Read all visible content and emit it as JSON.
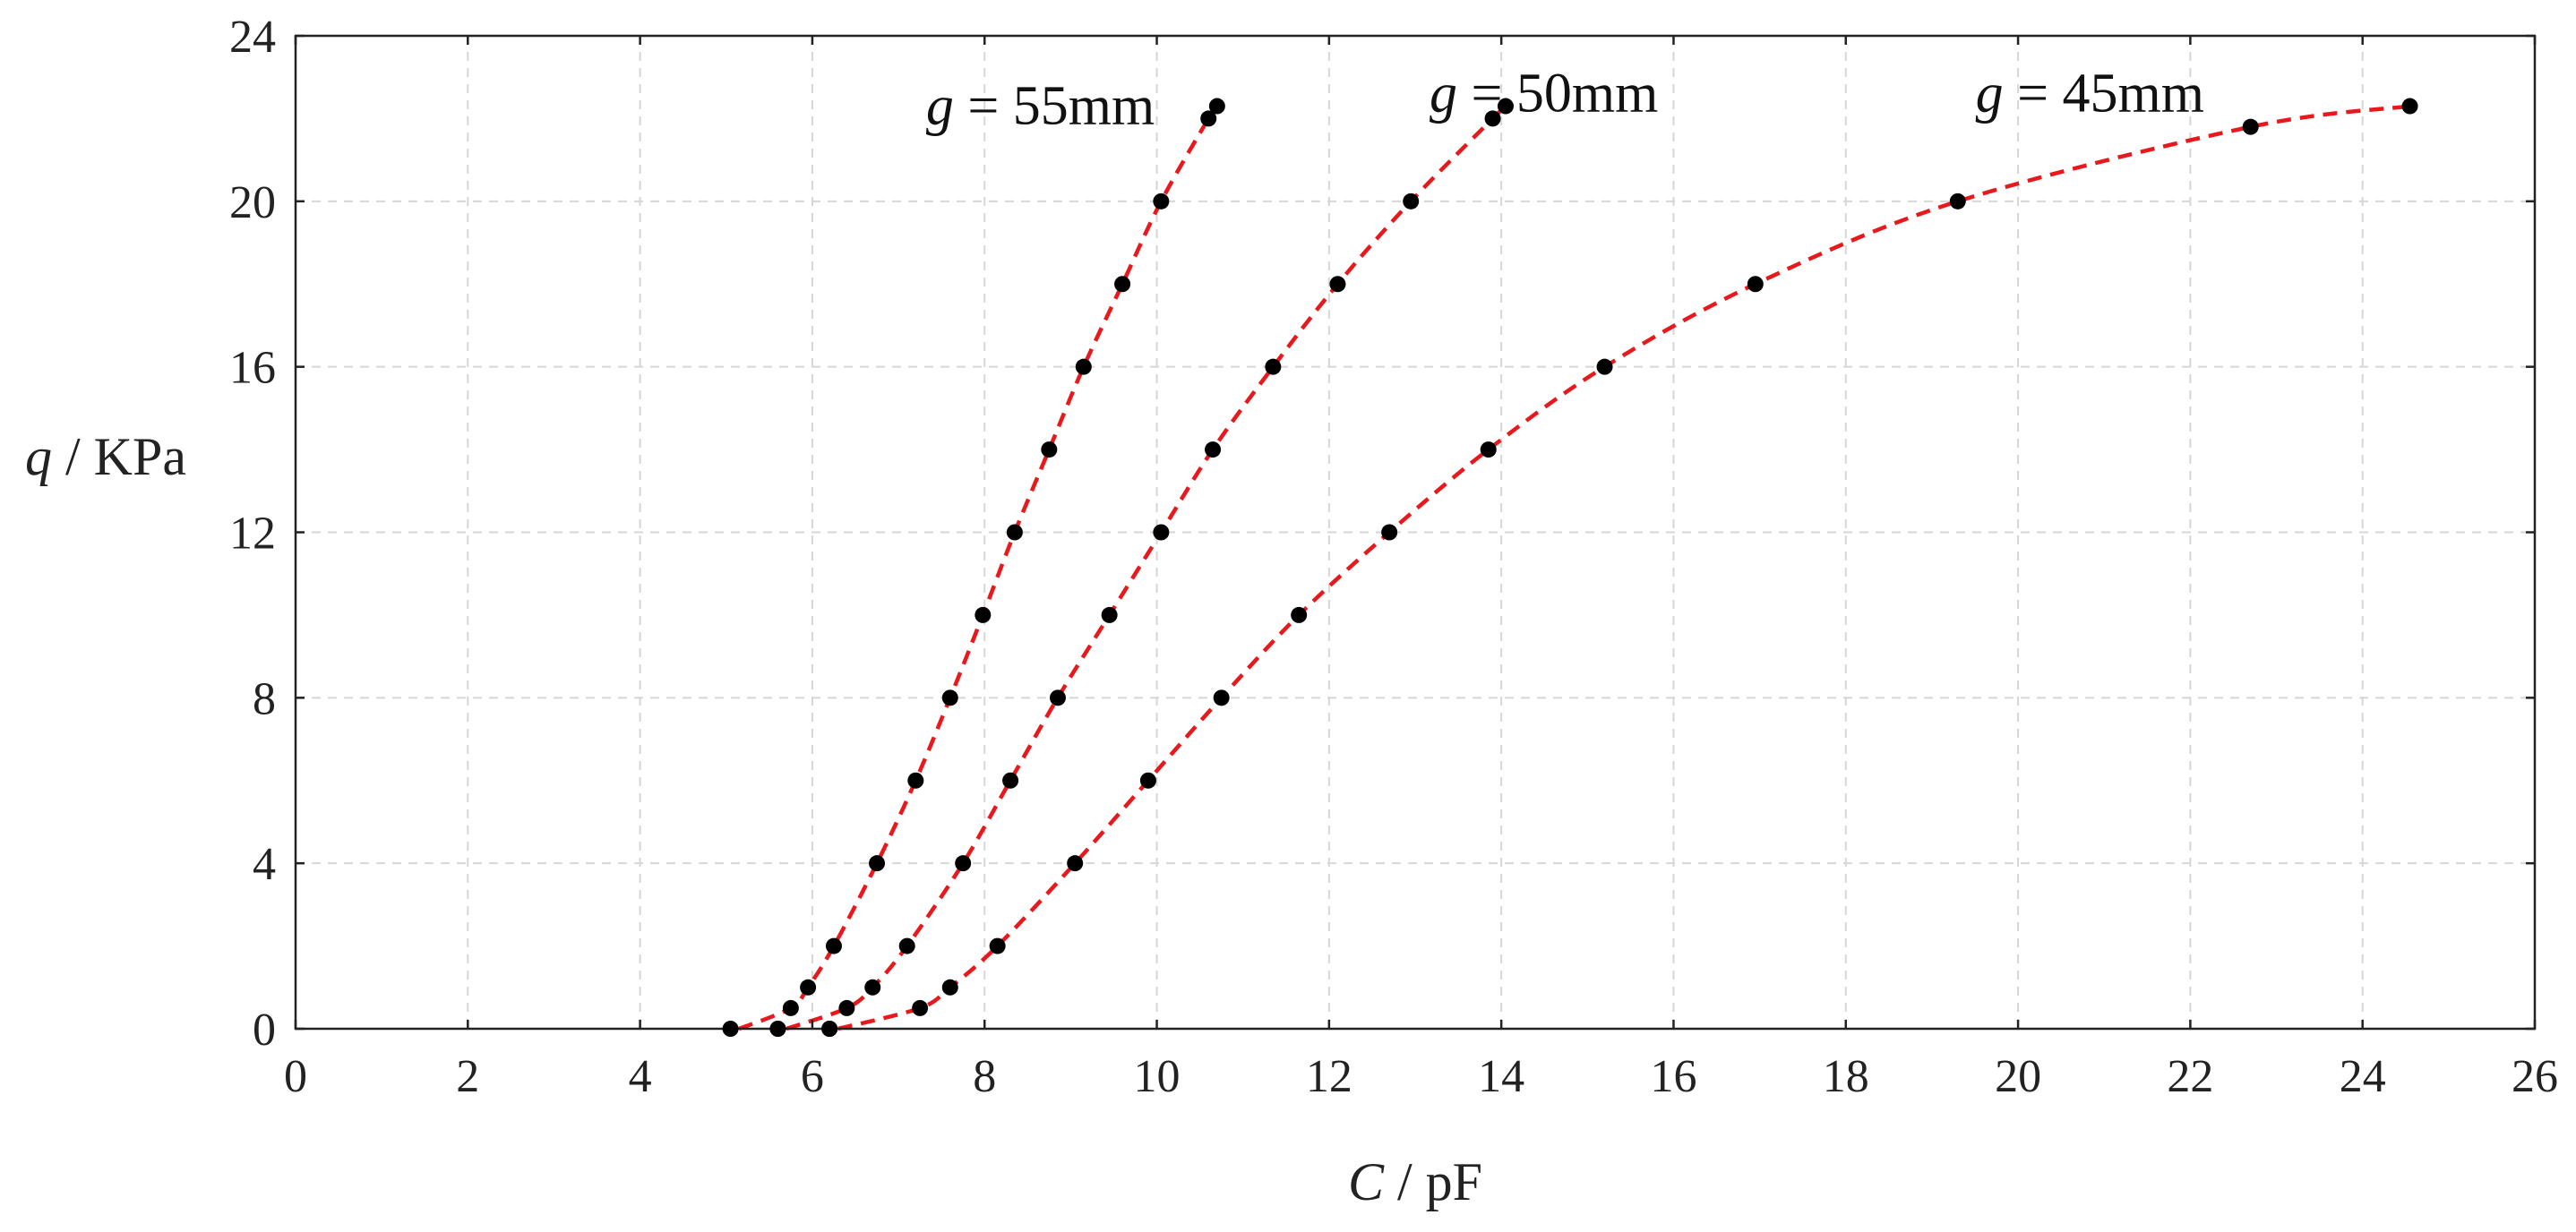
{
  "chart_data": {
    "type": "scatter",
    "title": "",
    "xlabel_var": "C",
    "xlabel_unit": "pF",
    "ylabel_var": "q",
    "ylabel_unit": "KPa",
    "xlim": [
      0,
      26
    ],
    "ylim": [
      0,
      24
    ],
    "xticks": [
      "0",
      "2",
      "4",
      "6",
      "8",
      "10",
      "12",
      "14",
      "16",
      "18",
      "20",
      "22",
      "24",
      "26"
    ],
    "yticks": [
      "0",
      "4",
      "8",
      "12",
      "16",
      "20",
      "24"
    ],
    "grid": true,
    "fit_line_color": "#e8191c",
    "marker_color": "#000000",
    "series": [
      {
        "name": "g = 55mm",
        "annotation_var": "g",
        "annotation_text": "= 55mm",
        "x": [
          5.05,
          5.6,
          5.75,
          5.95,
          6.25,
          6.75,
          7.2,
          7.6,
          7.98,
          8.35,
          8.75,
          9.15,
          9.6,
          10.05,
          10.6,
          10.7
        ],
        "y": [
          0,
          0,
          0.5,
          1,
          2,
          4,
          6,
          8,
          10,
          12,
          14,
          16,
          18,
          20,
          22,
          22.3
        ]
      },
      {
        "name": "g = 50mm",
        "annotation_var": "g",
        "annotation_text": "= 50mm",
        "x": [
          5.6,
          6.2,
          6.4,
          6.7,
          7.1,
          7.75,
          8.3,
          8.85,
          9.45,
          10.05,
          10.65,
          11.35,
          12.1,
          12.95,
          13.9,
          14.05
        ],
        "y": [
          0,
          0,
          0.5,
          1,
          2,
          4,
          6,
          8,
          10,
          12,
          14,
          16,
          18,
          20,
          22,
          22.3
        ]
      },
      {
        "name": "g = 45mm",
        "annotation_var": "g",
        "annotation_text": "= 45mm",
        "x": [
          6.2,
          7.25,
          7.6,
          8.15,
          9.05,
          9.9,
          10.75,
          11.65,
          12.7,
          13.85,
          15.2,
          16.95,
          19.3,
          22.7,
          24.55
        ],
        "y": [
          0,
          0.5,
          1,
          2,
          4,
          6,
          8,
          10,
          12,
          14,
          16,
          18,
          20,
          21.8,
          22.3
        ]
      }
    ]
  }
}
